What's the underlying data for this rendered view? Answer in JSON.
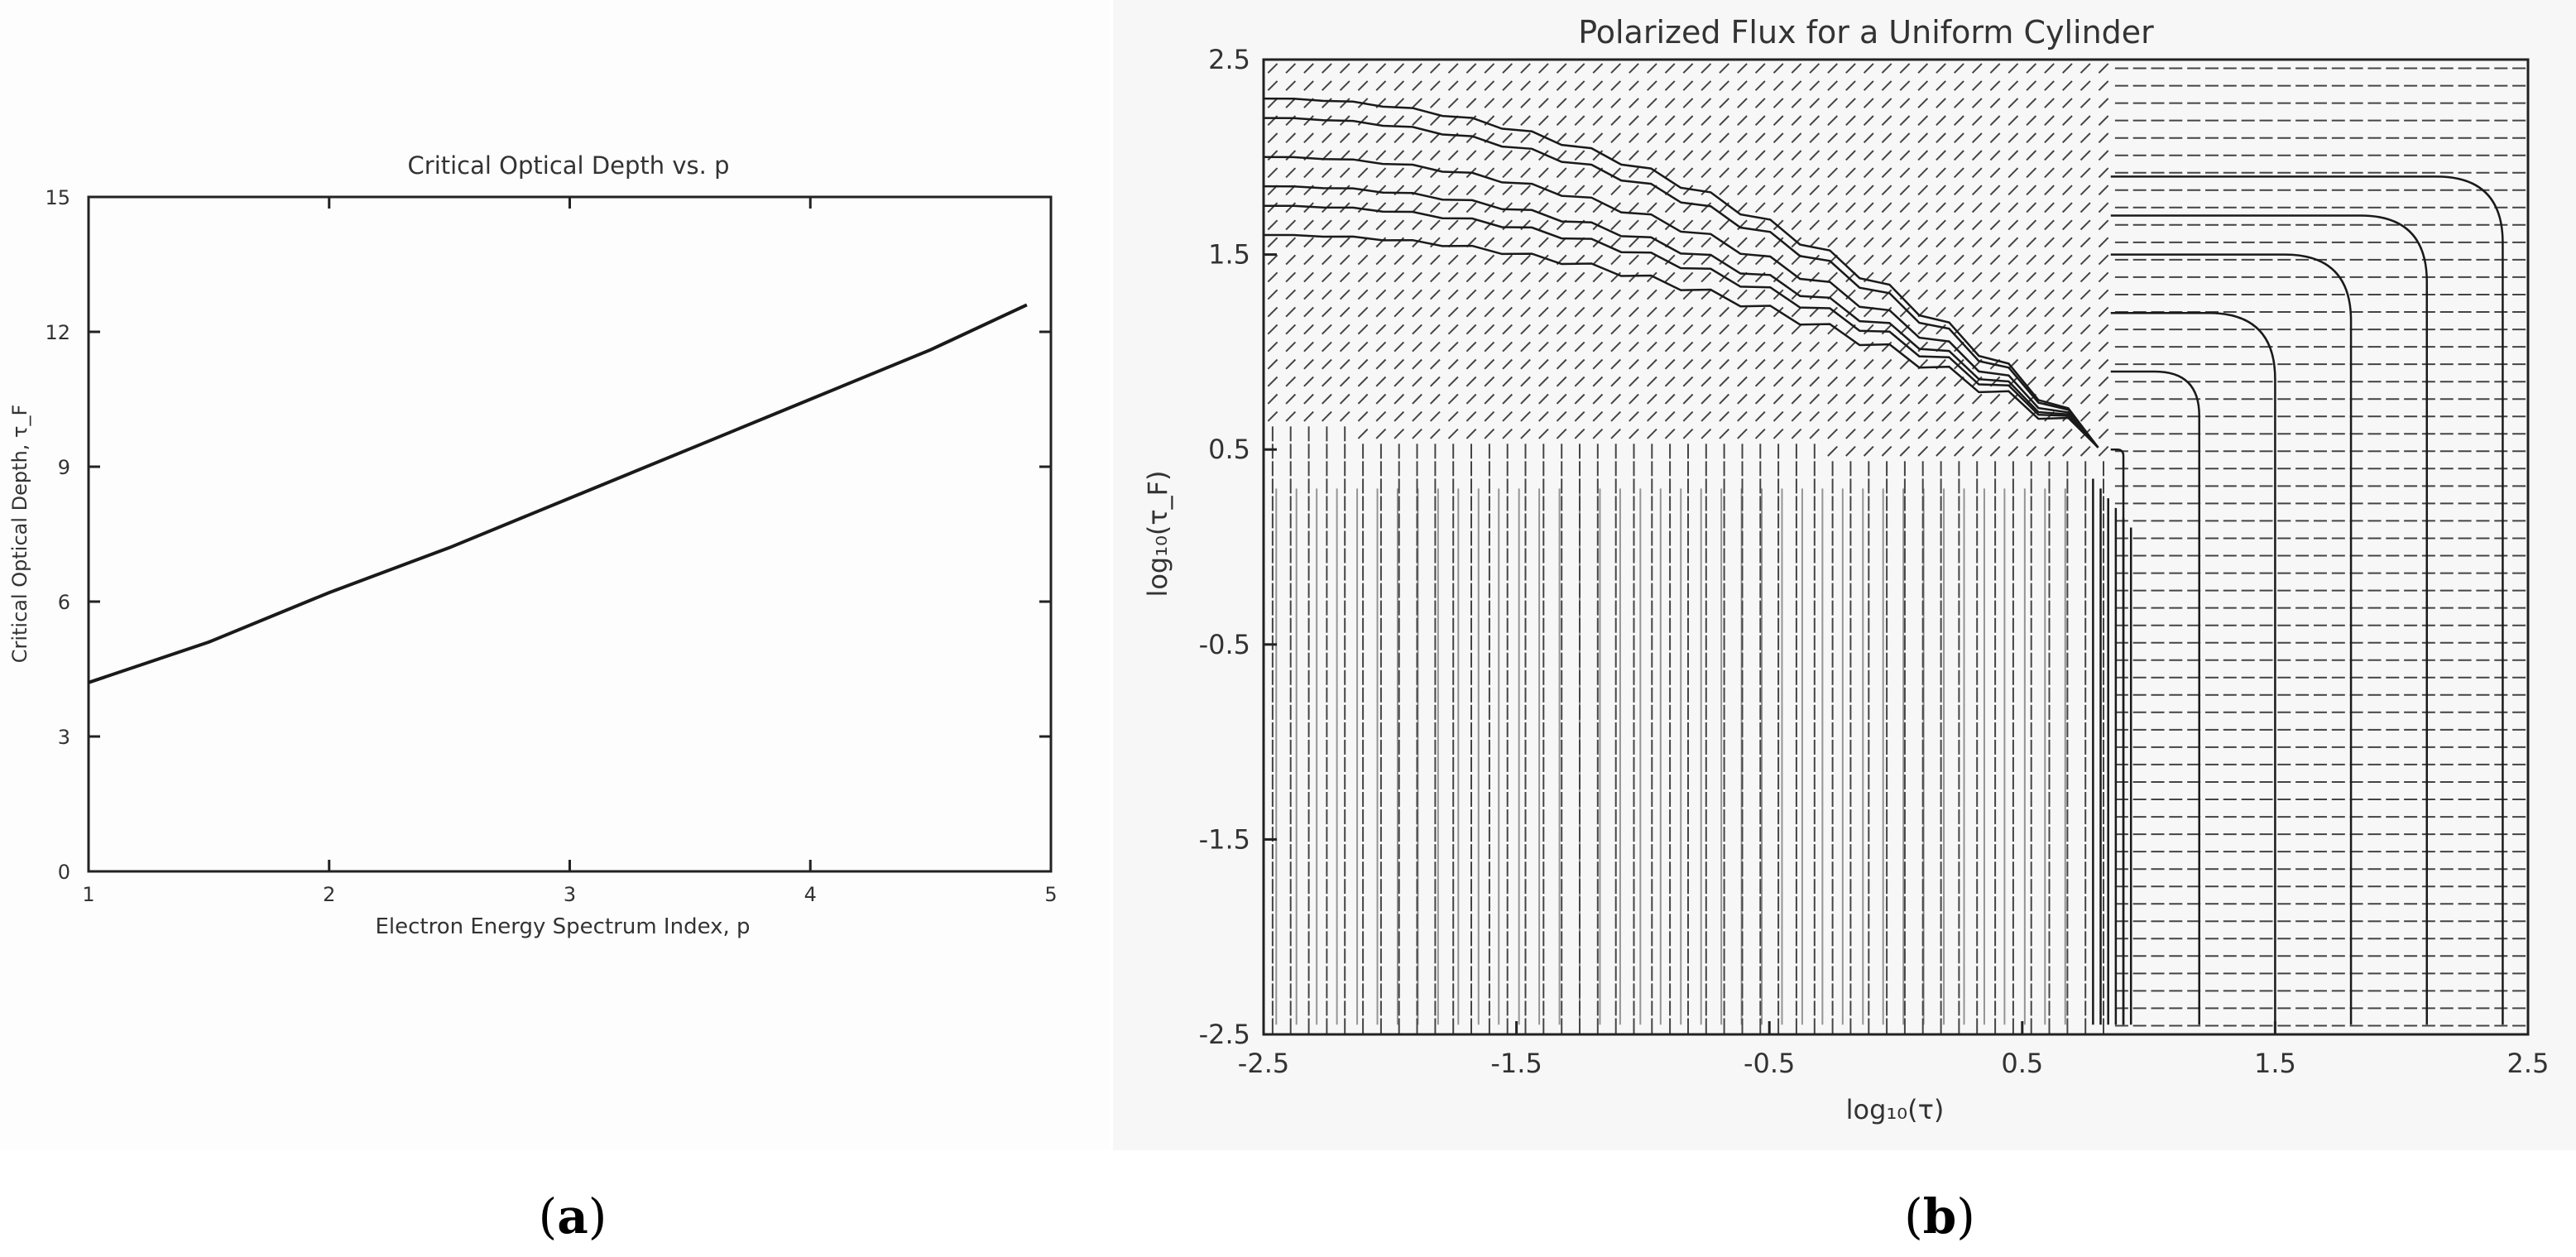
{
  "panels": [
    {
      "label": "a"
    },
    {
      "label": "b"
    }
  ],
  "chart_data": [
    {
      "type": "line",
      "title": "Critical Optical Depth vs. p",
      "xlabel": "Electron Energy Spectrum Index, p",
      "ylabel": "Critical Optical Depth, τ_F",
      "xlim": [
        1,
        5
      ],
      "ylim": [
        0,
        15
      ],
      "xticks": [
        "1",
        "2",
        "3",
        "4",
        "5"
      ],
      "yticks": [
        "0",
        "3",
        "6",
        "9",
        "12",
        "15"
      ],
      "grid": false,
      "series": [
        {
          "x": [
            1.0,
            1.5,
            2.0,
            2.5,
            3.0,
            3.5,
            4.0,
            4.5,
            4.9
          ],
          "values": [
            4.2,
            5.1,
            6.2,
            7.2,
            8.3,
            9.4,
            10.5,
            11.6,
            12.6
          ]
        }
      ]
    },
    {
      "type": "vector-field",
      "title": "Polarized Flux for a Uniform Cylinder",
      "xlabel": "log₁₀(τ)",
      "ylabel": "log₁₀(τ_F)",
      "xlim": [
        -2.5,
        2.5
      ],
      "ylim": [
        -2.5,
        2.5
      ],
      "xticks": [
        "-2.5",
        "-1.5",
        "-0.5",
        "0.5",
        "1.5",
        "2.5"
      ],
      "yticks": [
        "-2.5",
        "-1.5",
        "-0.5",
        "0.5",
        "1.5",
        "2.5"
      ],
      "grid": false,
      "description_of_field": {
        "left_low_region": "vertical polarization vectors",
        "right_region": "horizontal polarization vectors",
        "upper_left_region": "diagonal polarization vectors",
        "transition_x": 0.8
      },
      "contour_corner_x": [
        0.9,
        1.2,
        1.5,
        1.8,
        2.1,
        2.4
      ],
      "contour_top_y": [
        0.5,
        0.9,
        1.2,
        1.5,
        1.7,
        1.9
      ]
    }
  ]
}
